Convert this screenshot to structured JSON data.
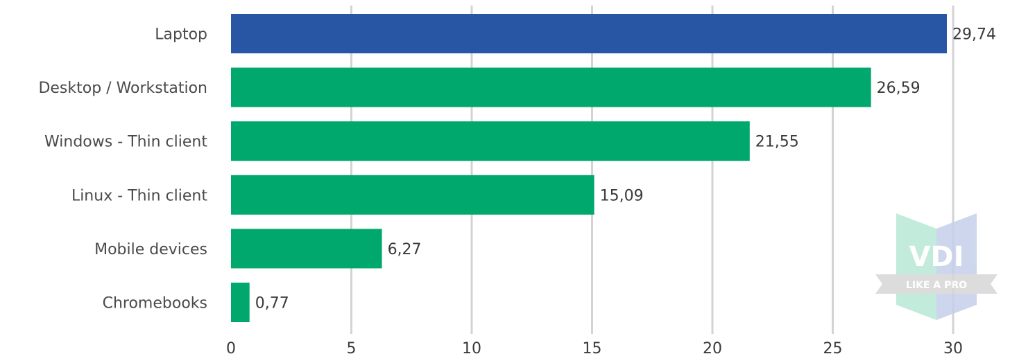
{
  "chart_data": {
    "type": "bar",
    "orientation": "horizontal",
    "categories": [
      "Laptop",
      "Desktop / Workstation",
      "Windows - Thin client",
      "Linux - Thin client",
      "Mobile devices",
      "Chromebooks"
    ],
    "values": [
      29.74,
      26.59,
      21.55,
      15.09,
      6.27,
      0.77
    ],
    "value_labels": [
      "29,74",
      "26,59",
      "21,55",
      "15,09",
      "6,27",
      "0,77"
    ],
    "highlight_index": 0,
    "xlim": [
      0,
      30
    ],
    "xticks": [
      0,
      5,
      10,
      15,
      20,
      25,
      30
    ],
    "xtick_labels": [
      "0",
      "5",
      "10",
      "15",
      "20",
      "25",
      "30"
    ],
    "grid": "vertical",
    "colors": {
      "highlight": "#2955a5",
      "default": "#00a86d",
      "grid": "#d3d3d3"
    }
  },
  "watermark": {
    "line1": "VDI",
    "line2": "LIKE A PRO",
    "colors": {
      "left": "#b9e8d6",
      "right": "#c5d0ea",
      "ribbon": "#d6d6d6"
    }
  }
}
